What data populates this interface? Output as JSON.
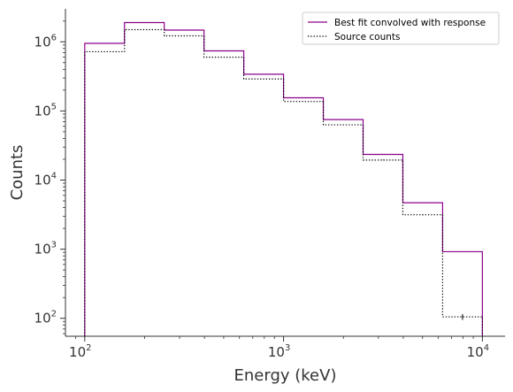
{
  "chart_data": {
    "type": "line",
    "drawstyle": "steps",
    "xlabel": "Energy (keV)",
    "ylabel": "Counts",
    "x_scale": "log",
    "y_scale": "log",
    "xlim": [
      80,
      13000
    ],
    "ylim": [
      55,
      3000000
    ],
    "x_ticks": [
      {
        "value": 100,
        "base": "10",
        "exp": "2"
      },
      {
        "value": 1000,
        "base": "10",
        "exp": "3"
      },
      {
        "value": 10000,
        "base": "10",
        "exp": "4"
      }
    ],
    "y_ticks": [
      {
        "value": 100,
        "base": "10",
        "exp": "2"
      },
      {
        "value": 1000,
        "base": "10",
        "exp": "3"
      },
      {
        "value": 10000,
        "base": "10",
        "exp": "4"
      },
      {
        "value": 100000,
        "base": "10",
        "exp": "5"
      },
      {
        "value": 1000000,
        "base": "10",
        "exp": "6"
      }
    ],
    "bin_edges": [
      100,
      158.5,
      251.2,
      398.1,
      631,
      1000,
      1585,
      2512,
      3981,
      6310,
      10000
    ],
    "series": [
      {
        "name": "Best fit convolved with response",
        "color": "#8b008b",
        "linestyle": "solid",
        "values": [
          950000,
          1900000,
          1480000,
          740000,
          340000,
          155000,
          75000,
          23500,
          4700,
          920
        ]
      },
      {
        "name": "Source counts",
        "color": "#000000",
        "linestyle": "dotted",
        "values": [
          720000,
          1500000,
          1220000,
          600000,
          290000,
          137000,
          63000,
          19500,
          3150,
          105
        ]
      }
    ],
    "legend_position": "top-right",
    "grid": false
  }
}
